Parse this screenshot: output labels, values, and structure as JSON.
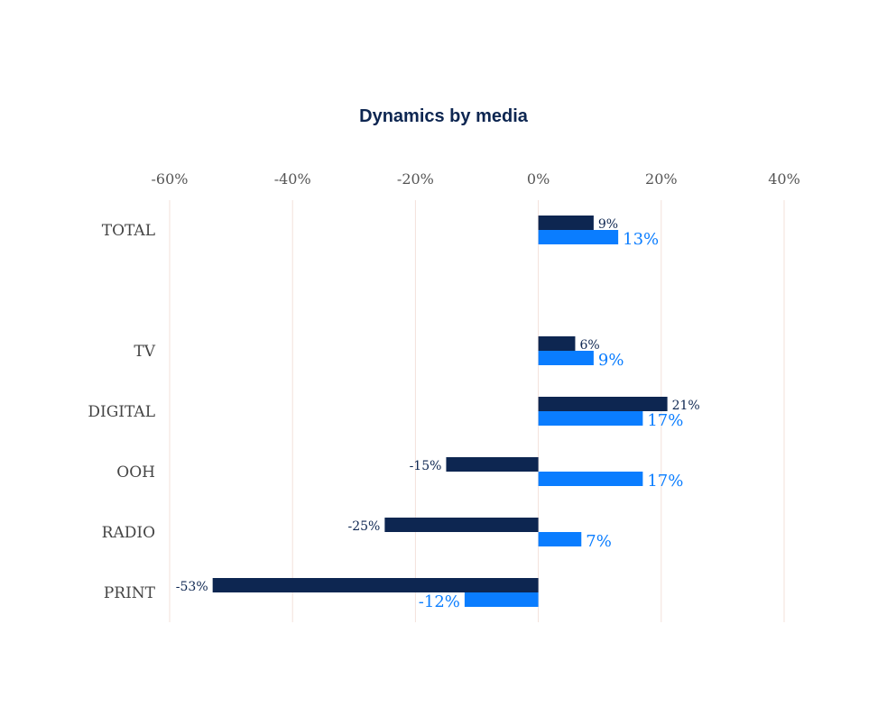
{
  "chart_data": {
    "type": "bar",
    "orientation": "horizontal",
    "title": "Dynamics by media",
    "xlim": [
      -60,
      40
    ],
    "x_ticks": [
      "-60%",
      "-40%",
      "-20%",
      "0%",
      "20%",
      "40%"
    ],
    "categories": [
      "TOTAL",
      "TV",
      "DIGITAL",
      "OOH",
      "RADIO",
      "PRINT"
    ],
    "series": [
      {
        "values": [
          9,
          6,
          21,
          -15,
          -25,
          -53
        ],
        "labels": [
          "9%",
          "6%",
          "21%",
          "-15%",
          "-25%",
          "-53%"
        ]
      },
      {
        "values": [
          13,
          9,
          17,
          17,
          7,
          -12
        ],
        "labels": [
          "13%",
          "9%",
          "17%",
          "17%",
          "7%",
          "-12%"
        ]
      }
    ],
    "colors": {
      "series_dark": "#0d2651",
      "series_light": "#0a7dff",
      "title": "#0d2651",
      "grid": "#f3e1da"
    },
    "grid": true,
    "legend": "none"
  }
}
